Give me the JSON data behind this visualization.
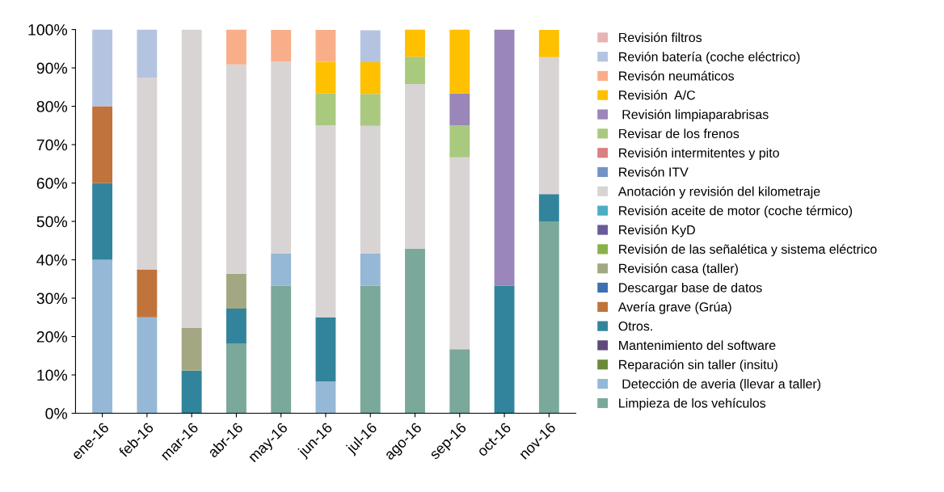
{
  "chart_data": {
    "type": "bar",
    "stacked": true,
    "legend": "right",
    "grid": false,
    "categories": [
      "ene-16",
      "feb-16",
      "mar-16",
      "abr-16",
      "may-16",
      "jun-16",
      "jul-16",
      "ago-16",
      "sep-16",
      "oct-16",
      "nov-16"
    ],
    "ylim": [
      0,
      100
    ],
    "yticks": [
      {
        "value": 0,
        "label": "0%"
      },
      {
        "value": 10,
        "label": "10%"
      },
      {
        "value": 20,
        "label": "20%"
      },
      {
        "value": 30,
        "label": "30%"
      },
      {
        "value": 40,
        "label": "40%"
      },
      {
        "value": 50,
        "label": "50%"
      },
      {
        "value": 60,
        "label": "60%"
      },
      {
        "value": 70,
        "label": "70%"
      },
      {
        "value": 80,
        "label": "80%"
      },
      {
        "value": 90,
        "label": "90%"
      },
      {
        "value": 100,
        "label": "100%"
      }
    ],
    "series": [
      {
        "name": "Limpieza de los vehículos",
        "color": "#7aa89a",
        "values": [
          0,
          0,
          0,
          18.2,
          33.3,
          0,
          33.3,
          42.9,
          16.7,
          0,
          50
        ]
      },
      {
        "name": " Detección de averia (llevar a taller)",
        "color": "#95b8d6",
        "values": [
          40,
          25,
          0,
          0,
          8.3,
          8.3,
          8.3,
          0,
          0,
          0,
          0
        ]
      },
      {
        "name": "Reparación sin taller (insitu)",
        "color": "#6a8a3a",
        "values": [
          0,
          0,
          0,
          0,
          0,
          0,
          0,
          0,
          0,
          0,
          0
        ]
      },
      {
        "name": "Mantenimiento del software",
        "color": "#604a7b",
        "values": [
          0,
          0,
          0,
          0,
          0,
          0,
          0,
          0,
          0,
          0,
          0
        ]
      },
      {
        "name": "Otros.",
        "color": "#31849b",
        "values": [
          20,
          0,
          11.1,
          9.1,
          0,
          16.7,
          0,
          0,
          0,
          33.3,
          7.1
        ]
      },
      {
        "name": "Avería grave (Grúa)",
        "color": "#c0733a",
        "values": [
          20,
          12.5,
          0,
          0,
          0,
          0,
          0,
          0,
          0,
          0,
          0
        ]
      },
      {
        "name": "Descargar base de datos",
        "color": "#3e6fb0",
        "values": [
          0,
          0,
          0,
          0,
          0,
          0,
          0,
          0,
          0,
          0,
          0
        ]
      },
      {
        "name": "Revisión casa (taller)",
        "color": "#a3a883",
        "values": [
          0,
          0,
          11.1,
          9.1,
          0,
          0,
          0,
          0,
          0,
          0,
          0
        ]
      },
      {
        "name": "Revisión de las señalética y sistema eléctrico",
        "color": "#8ab04a",
        "values": [
          0,
          0,
          0,
          0,
          0,
          0,
          0,
          0,
          0,
          0,
          0
        ]
      },
      {
        "name": "Revisión KyD",
        "color": "#6b5a9a",
        "values": [
          0,
          0,
          0,
          0,
          0,
          0,
          0,
          0,
          0,
          0,
          0
        ]
      },
      {
        "name": "Revisión aceite de motor (coche térmico)",
        "color": "#4bacc6",
        "values": [
          0,
          0,
          0,
          0,
          0,
          0,
          0,
          0,
          0,
          0,
          0
        ]
      },
      {
        "name": "Anotación y revisión del kilometraje",
        "color": "#d9d4d4",
        "values": [
          0,
          50,
          77.8,
          54.5,
          50,
          50,
          33.3,
          42.9,
          50,
          0,
          35.7
        ]
      },
      {
        "name": "Revisón ITV",
        "color": "#7393c4",
        "values": [
          0,
          0,
          0,
          0,
          0,
          0,
          0,
          0,
          0,
          0,
          0
        ]
      },
      {
        "name": "Revisión intermitentes y pito",
        "color": "#d98080",
        "values": [
          0,
          0,
          0,
          0,
          0,
          0,
          0,
          0,
          0,
          0,
          0
        ]
      },
      {
        "name": "Revisar de los frenos",
        "color": "#a9c97f",
        "values": [
          0,
          0,
          0,
          0,
          0,
          8.3,
          8.3,
          7.1,
          8.3,
          0,
          0
        ]
      },
      {
        "name": " Revisión limpiaparabrisas",
        "color": "#9a86b8",
        "values": [
          0,
          0,
          0,
          0,
          0,
          0,
          0,
          0,
          8.3,
          66.7,
          0
        ]
      },
      {
        "name": "Revisión  A/C",
        "color": "#ffc000",
        "values": [
          0,
          0,
          0,
          0,
          0,
          8.3,
          8.3,
          7.1,
          16.7,
          0,
          7.1
        ]
      },
      {
        "name": "Revisón neumáticos",
        "color": "#f9ae8a",
        "values": [
          0,
          0,
          0,
          9.1,
          8.3,
          8.3,
          0,
          0,
          0,
          0,
          0
        ]
      },
      {
        "name": "Revión batería (coche eléctrico)",
        "color": "#b4c4e0",
        "values": [
          20,
          12.5,
          0,
          0,
          0,
          0,
          8.3,
          0,
          0,
          0,
          0
        ]
      },
      {
        "name": "Revisión filtros",
        "color": "#e6b4b4",
        "values": [
          0,
          0,
          0,
          0,
          0,
          0,
          0,
          0,
          0,
          0,
          0
        ]
      }
    ]
  }
}
